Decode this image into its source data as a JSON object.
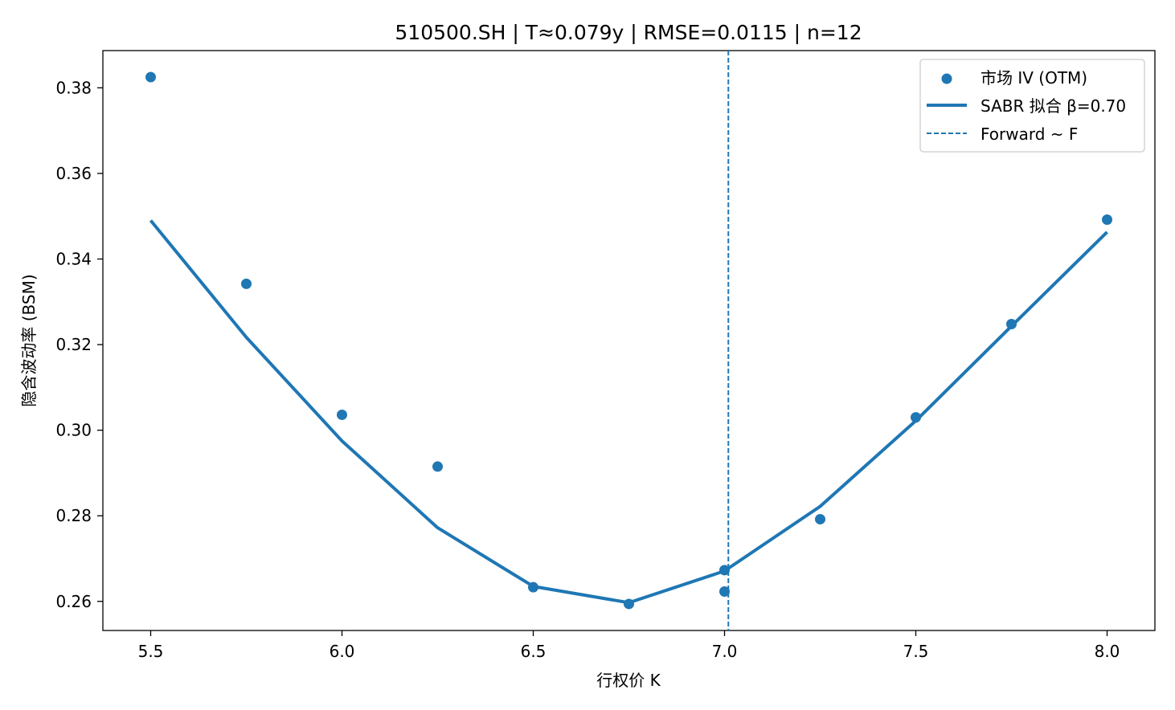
{
  "chart_data": {
    "type": "scatter",
    "title": "510500.SH | T≈0.079y | RMSE=0.0115 | n=12",
    "xlabel": "行权价 K",
    "ylabel": "隐含波动率 (BSM)",
    "xlim": [
      5.375,
      8.125
    ],
    "ylim": [
      0.2532,
      0.3887
    ],
    "xticks": [
      5.5,
      6.0,
      6.5,
      7.0,
      7.5,
      8.0
    ],
    "xtick_labels": [
      "5.5",
      "6.0",
      "6.5",
      "7.0",
      "7.5",
      "8.0"
    ],
    "yticks": [
      0.26,
      0.28,
      0.3,
      0.32,
      0.34,
      0.36,
      0.38
    ],
    "ytick_labels": [
      "0.26",
      "0.28",
      "0.30",
      "0.32",
      "0.34",
      "0.36",
      "0.38"
    ],
    "grid": false,
    "legend_position": "top-right",
    "series": [
      {
        "name": "市场 IV (OTM)",
        "kind": "scatter",
        "color": "#1f77b4",
        "x": [
          5.5,
          5.75,
          6.0,
          6.25,
          6.5,
          6.75,
          7.0,
          7.0,
          7.25,
          7.5,
          7.75,
          8.0
        ],
        "y": [
          0.3825,
          0.3342,
          0.3036,
          0.2915,
          0.2633,
          0.2594,
          0.2673,
          0.2623,
          0.2792,
          0.303,
          0.3248,
          0.3492
        ]
      },
      {
        "name": "SABR 拟合 β=0.70",
        "kind": "line",
        "color": "#1f77b4",
        "x": [
          5.5,
          5.75,
          6.0,
          6.25,
          6.5,
          6.75,
          7.0,
          7.25,
          7.5,
          7.75,
          8.0
        ],
        "y": [
          0.349,
          0.3217,
          0.2975,
          0.2772,
          0.2635,
          0.2597,
          0.2671,
          0.2822,
          0.3022,
          0.3243,
          0.3463
        ]
      },
      {
        "name": "Forward ~ F",
        "kind": "vline",
        "color": "#1f77b4",
        "x": 7.01
      }
    ]
  }
}
